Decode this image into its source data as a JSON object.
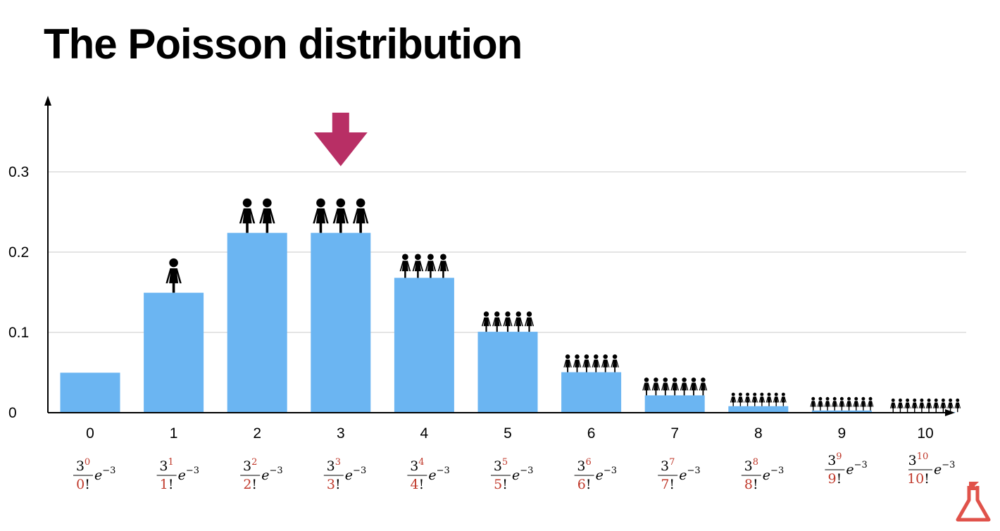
{
  "title": "The Poisson distribution",
  "chart_data": {
    "type": "bar",
    "title": "The Poisson distribution",
    "xlabel": "",
    "ylabel": "",
    "lambda": 3,
    "categories": [
      "0",
      "1",
      "2",
      "3",
      "4",
      "5",
      "6",
      "7",
      "8",
      "9",
      "10"
    ],
    "values": [
      0.0498,
      0.1494,
      0.224,
      0.224,
      0.168,
      0.1008,
      0.0504,
      0.0216,
      0.0081,
      0.0027,
      0.0008
    ],
    "ylim": [
      0,
      0.37
    ],
    "yticks": [
      0,
      0.1,
      0.2,
      0.3
    ],
    "ytick_labels": [
      "0",
      "0.1",
      "0.2",
      "0.3"
    ],
    "grid": true,
    "bar_color": "#6bb5f2",
    "highlight_category": "3",
    "highlight_color": "#b82f65",
    "formula_color": "#c0392b",
    "formula_base": "3",
    "formula_tail": "e",
    "formula_tail_exp": "−3",
    "formula_factorial": "!",
    "person_icon": "person-icon",
    "people_per_bar": [
      0,
      1,
      2,
      3,
      4,
      5,
      6,
      7,
      8,
      9,
      10
    ]
  }
}
